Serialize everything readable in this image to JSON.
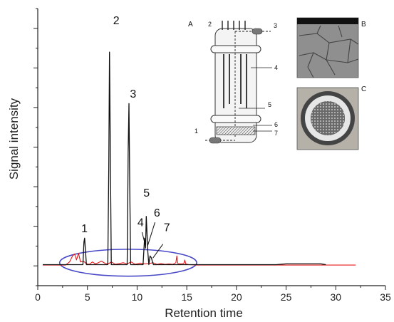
{
  "chart_data": {
    "type": "line",
    "title": "",
    "xlabel": "Retention time",
    "ylabel": "Signal intensity",
    "xlim": [
      0,
      35
    ],
    "ylim": [
      -0.5,
      6.5
    ],
    "grid": false,
    "x_ticks": [
      "0",
      "5",
      "10",
      "15",
      "20",
      "25",
      "30",
      "35"
    ],
    "series": [
      {
        "color": "#111111",
        "x": [
          0.5,
          4.55,
          4.65,
          4.72,
          4.8,
          4.9,
          7.05,
          7.15,
          7.22,
          7.3,
          7.4,
          9.0,
          9.1,
          9.18,
          9.26,
          9.35,
          10.6,
          10.75,
          10.85,
          10.92,
          11.0,
          11.08,
          11.18,
          11.3,
          11.45,
          11.55,
          11.65,
          15,
          20,
          24,
          25,
          28.5,
          29
        ],
        "y": [
          0.03,
          0.03,
          0.6,
          0.7,
          0.4,
          0.03,
          0.03,
          2.5,
          5.4,
          3.0,
          0.03,
          0.03,
          2.9,
          4.1,
          2.0,
          0.03,
          0.03,
          0.7,
          0.45,
          1.25,
          0.8,
          0.35,
          0.03,
          0.25,
          0.2,
          0.1,
          0.03,
          0.03,
          0.03,
          0.03,
          0.05,
          0.05,
          0.03
        ]
      },
      {
        "color": "#e41a1c",
        "x": [
          0.5,
          2.8,
          3.2,
          3.5,
          3.7,
          3.9,
          4.1,
          4.3,
          4.6,
          4.9,
          5.2,
          5.5,
          5.8,
          6.1,
          6.4,
          6.8,
          7.1,
          7.4,
          7.8,
          8.2,
          8.6,
          9.0,
          9.4,
          9.8,
          10.3,
          10.8,
          11.2,
          11.6,
          12.0,
          12.4,
          12.8,
          13.2,
          13.6,
          13.9,
          14.0,
          14.1,
          14.4,
          14.7,
          14.8,
          14.9,
          15.2,
          16,
          20,
          25,
          30,
          32
        ],
        "y": [
          0.02,
          0.02,
          0.1,
          0.25,
          0.3,
          0.15,
          0.32,
          0.1,
          0.12,
          0.05,
          0.04,
          0.1,
          0.05,
          0.08,
          0.12,
          0.06,
          0.05,
          0.1,
          0.04,
          0.06,
          0.08,
          0.05,
          0.1,
          0.04,
          0.07,
          0.05,
          0.06,
          0.08,
          0.04,
          0.06,
          0.04,
          0.05,
          0.04,
          0.08,
          0.25,
          0.06,
          0.05,
          0.06,
          0.15,
          0.05,
          0.03,
          0.02,
          0.02,
          0.02,
          0.02,
          0.02
        ]
      }
    ],
    "peak_labels": [
      {
        "text": "1",
        "x": 4.7,
        "y": 0.85
      },
      {
        "text": "2",
        "x": 7.9,
        "y": 6.1
      },
      {
        "text": "3",
        "x": 9.6,
        "y": 4.25
      },
      {
        "text": "4",
        "x": 10.35,
        "y": 1.0
      },
      {
        "text": "5",
        "x": 10.95,
        "y": 1.75
      },
      {
        "text": "6",
        "x": 12.0,
        "y": 1.25
      },
      {
        "text": "7",
        "x": 13.0,
        "y": 0.88
      }
    ],
    "highlight_ellipse": {
      "x_center": 9.1,
      "y_center": 0.08,
      "x_radius": 6.9,
      "y_radius": 0.34,
      "color": "#4a4ac8"
    },
    "inset": {
      "panels": [
        "A",
        "B",
        "C"
      ],
      "schematic_labels": [
        "1",
        "2",
        "3",
        "4",
        "5",
        "6",
        "7"
      ]
    }
  }
}
